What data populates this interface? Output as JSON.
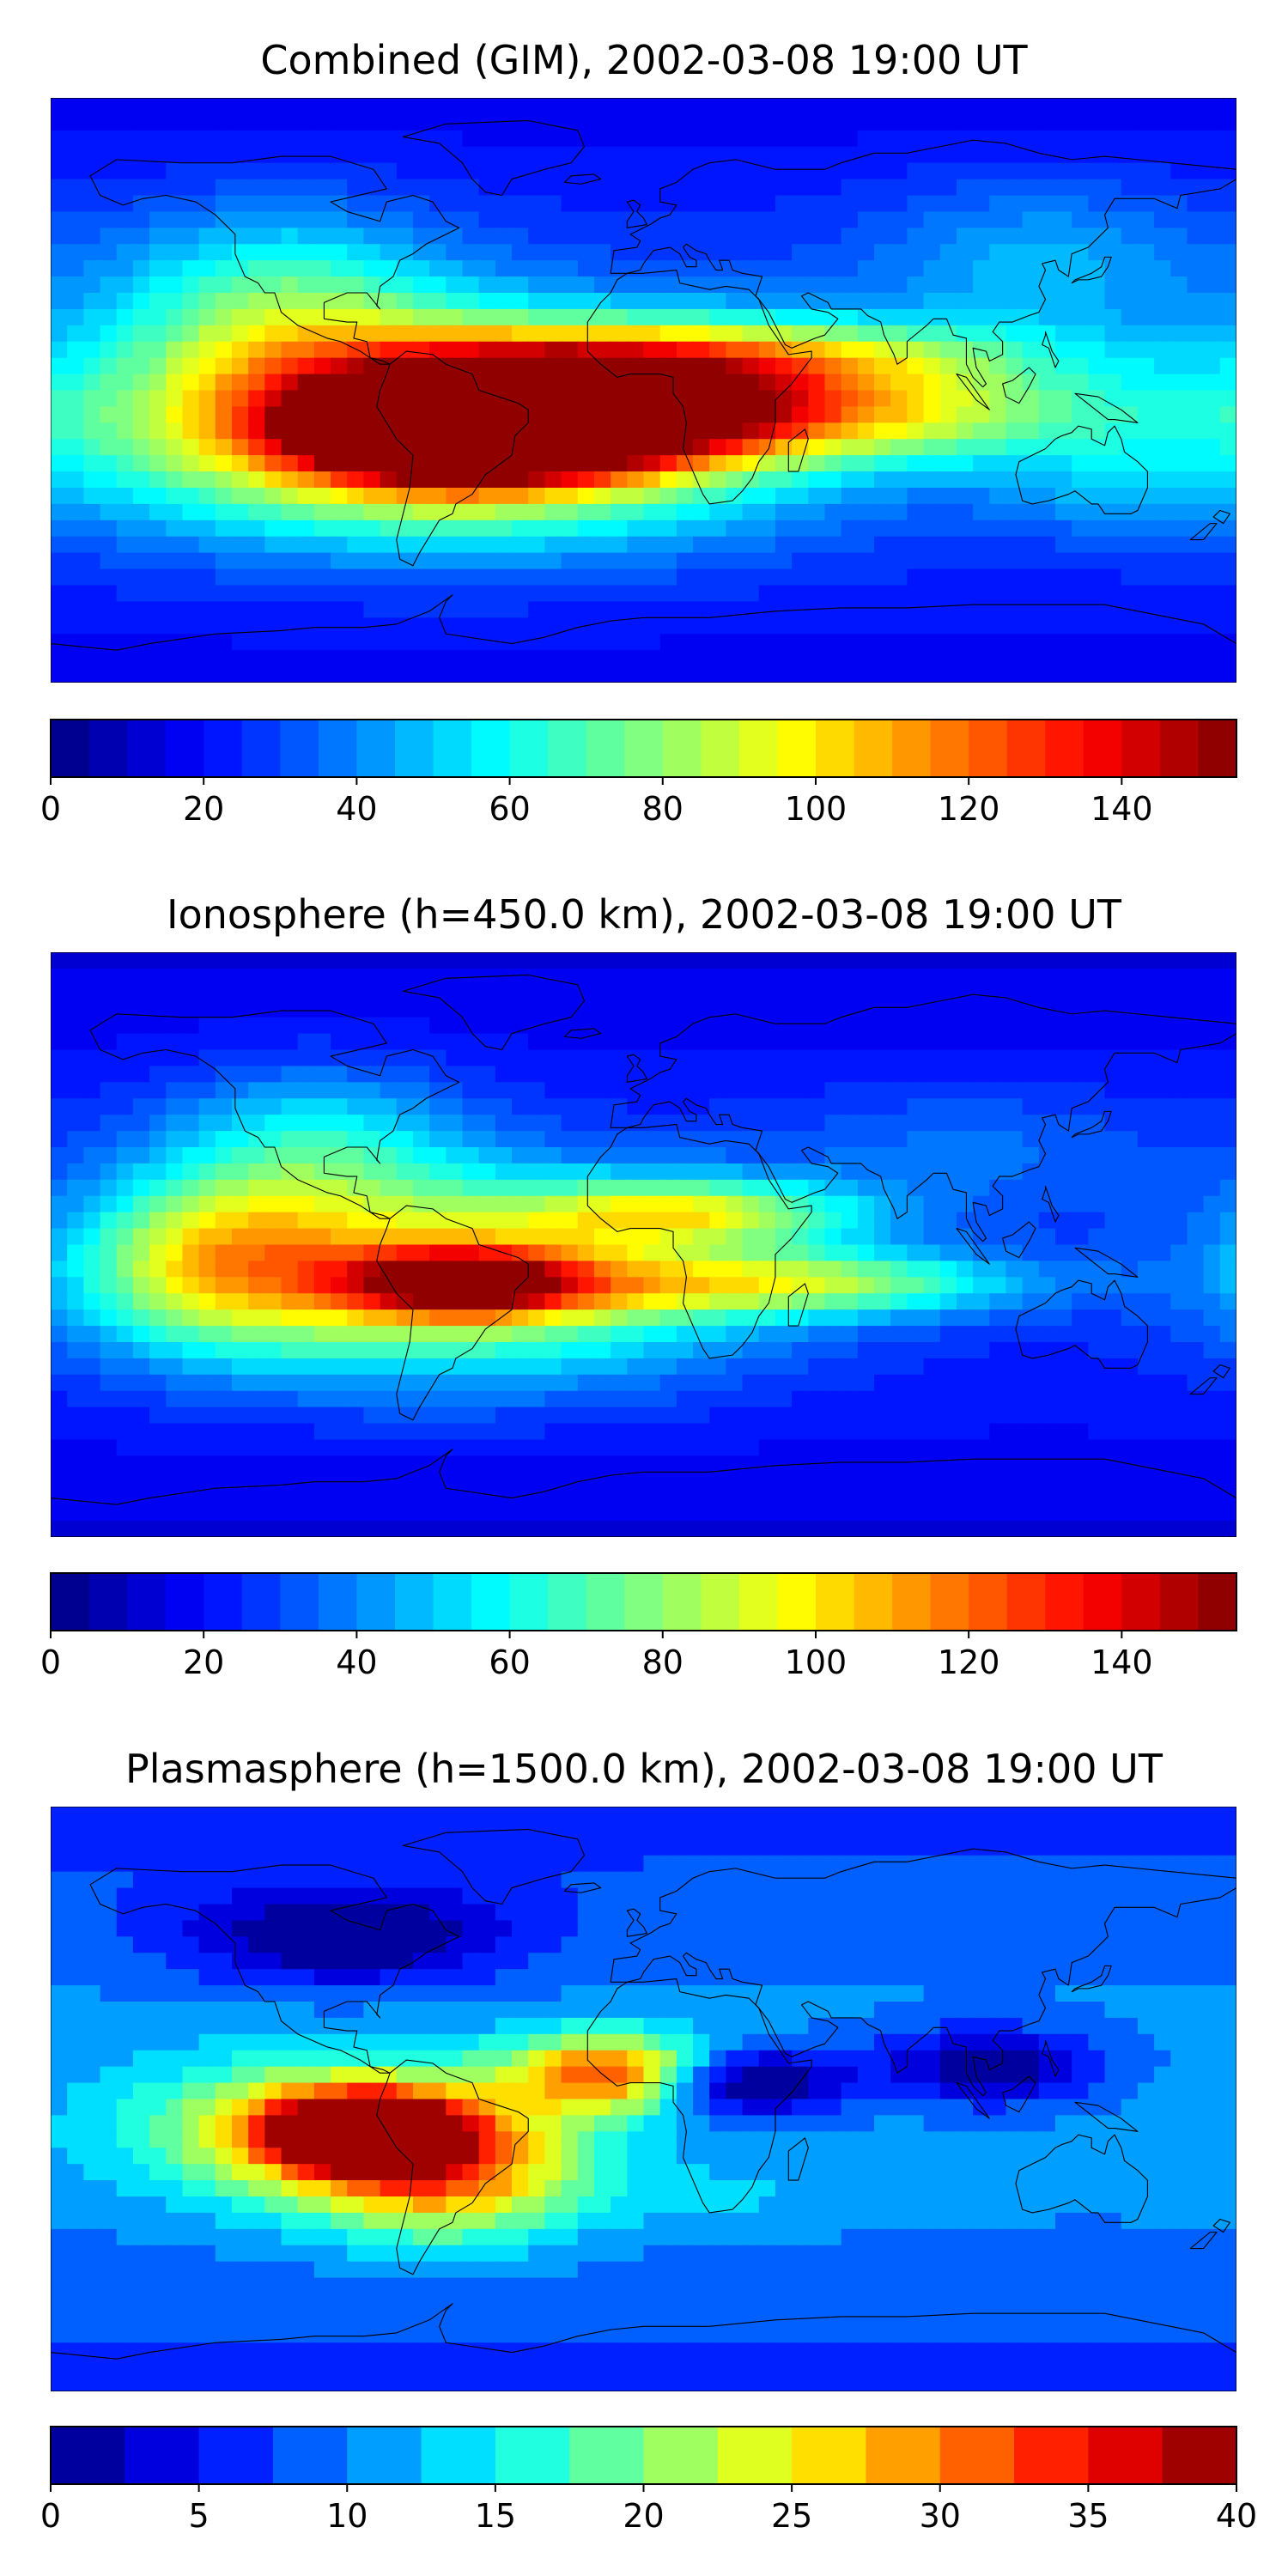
{
  "panels": [
    {
      "title": "Combined (GIM), 2002-03-08 19:00 UT",
      "colorbar": {
        "min": 0,
        "max": 155,
        "levels": 31,
        "ticks": [
          "0",
          "20",
          "40",
          "60",
          "80",
          "100",
          "120",
          "140"
        ],
        "tick_values": [
          0,
          20,
          40,
          60,
          80,
          100,
          120,
          140
        ]
      },
      "blobs": [
        {
          "lon": -60,
          "lat": -12,
          "rlon": 95,
          "rlat": 30,
          "val": 125
        },
        {
          "lon": -55,
          "lat": -12,
          "rlon": 45,
          "rlat": 14,
          "val": 145
        },
        {
          "lon": -20,
          "lat": -5,
          "rlon": 55,
          "rlat": 16,
          "val": 95
        },
        {
          "lon": 35,
          "lat": 10,
          "rlon": 90,
          "rlat": 12,
          "val": 70
        },
        {
          "lon": 60,
          "lat": -8,
          "rlon": 95,
          "rlat": 14,
          "val": 70
        },
        {
          "lon": -110,
          "lat": 25,
          "rlon": 50,
          "rlat": 30,
          "val": 55
        },
        {
          "lon": 120,
          "lat": 40,
          "rlon": 50,
          "rlat": 25,
          "val": 35
        },
        {
          "lon": 140,
          "lat": -30,
          "rlon": 40,
          "rlat": 15,
          "val": 30
        }
      ],
      "base": 30
    },
    {
      "title": "Ionosphere  (h=450.0 km), 2002-03-08 19:00 UT",
      "colorbar": {
        "min": 0,
        "max": 155,
        "levels": 31,
        "ticks": [
          "0",
          "20",
          "40",
          "60",
          "80",
          "100",
          "120",
          "140"
        ],
        "tick_values": [
          0,
          20,
          40,
          60,
          80,
          100,
          120,
          140
        ]
      },
      "blobs": [
        {
          "lon": -60,
          "lat": -10,
          "rlon": 90,
          "rlat": 30,
          "val": 85
        },
        {
          "lon": -55,
          "lat": -12,
          "rlon": 35,
          "rlat": 10,
          "val": 100
        },
        {
          "lon": -130,
          "lat": -5,
          "rlon": 40,
          "rlat": 25,
          "val": 60
        },
        {
          "lon": 15,
          "lat": 10,
          "rlon": 50,
          "rlat": 10,
          "val": 65
        },
        {
          "lon": 45,
          "lat": -12,
          "rlon": 70,
          "rlat": 10,
          "val": 65
        },
        {
          "lon": -100,
          "lat": 30,
          "rlon": 45,
          "rlat": 25,
          "val": 45
        },
        {
          "lon": 100,
          "lat": 30,
          "rlon": 60,
          "rlat": 20,
          "val": 25
        }
      ],
      "base": 25
    },
    {
      "title": "Plasmasphere (h=1500.0 km), 2002-03-08 19:00 UT",
      "colorbar": {
        "min": 0,
        "max": 40,
        "levels": 16,
        "ticks": [
          "0",
          "5",
          "10",
          "15",
          "20",
          "25",
          "30",
          "35",
          "40"
        ],
        "tick_values": [
          0,
          5,
          10,
          15,
          20,
          25,
          30,
          35,
          40
        ]
      },
      "blobs": [
        {
          "lon": -90,
          "lat": -10,
          "rlon": 55,
          "rlat": 20,
          "val": 27
        },
        {
          "lon": -85,
          "lat": -10,
          "rlon": 25,
          "rlat": 10,
          "val": 36
        },
        {
          "lon": -10,
          "lat": 8,
          "rlon": 30,
          "rlat": 12,
          "val": 27
        },
        {
          "lon": -60,
          "lat": -25,
          "rlon": 40,
          "rlat": 20,
          "val": 20
        },
        {
          "lon": 30,
          "lat": 5,
          "rlon": 30,
          "rlat": 10,
          "val": -8
        },
        {
          "lon": 105,
          "lat": 10,
          "rlon": 35,
          "rlat": 12,
          "val": -5
        },
        {
          "lon": -90,
          "lat": 50,
          "rlon": 50,
          "rlat": 15,
          "val": -5
        },
        {
          "lon": 20,
          "lat": -30,
          "rlon": 50,
          "rlat": 10,
          "val": 8
        }
      ],
      "base": 11
    }
  ]
}
